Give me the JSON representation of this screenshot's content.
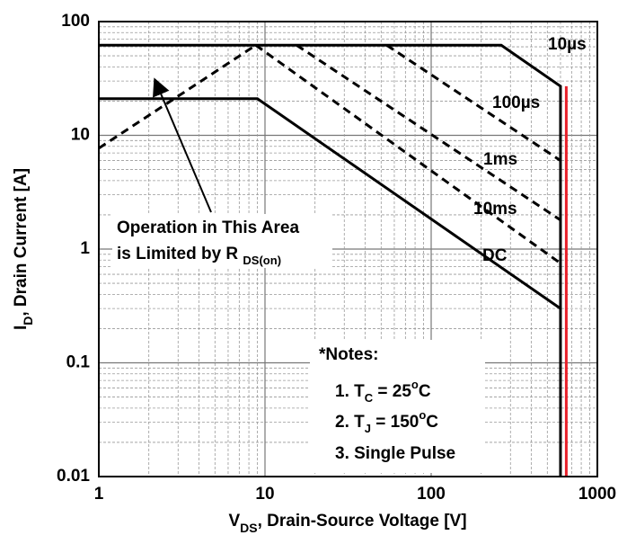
{
  "chart_data": {
    "type": "line",
    "log_x": true,
    "log_y": true,
    "grid": true,
    "minor_grid": true,
    "x_label": [
      {
        "text": "V"
      },
      {
        "text": "DS",
        "sub": true
      },
      {
        "text": ", Drain-Source Voltage [V]"
      }
    ],
    "y_label": [
      {
        "text": "I"
      },
      {
        "text": "D",
        "sub": true
      },
      {
        "text": ", Drain Current [A]"
      }
    ],
    "xlim": [
      1,
      1000
    ],
    "xticks": [
      1,
      10,
      100,
      1000
    ],
    "ylim": [
      0.01,
      100
    ],
    "yticks": [
      0.01,
      0.1,
      1,
      10,
      100
    ],
    "series": [
      {
        "name": "10µs",
        "color": "#000000",
        "dash": false,
        "x": [
          1,
          264,
          600,
          600
        ],
        "values": [
          62,
          62,
          27,
          0.01
        ]
      },
      {
        "name": "100µs",
        "color": "#000000",
        "dash": true,
        "x": [
          54,
          600
        ],
        "values": [
          62,
          6
        ]
      },
      {
        "name": "1ms",
        "color": "#000000",
        "dash": true,
        "x": [
          15.5,
          600
        ],
        "values": [
          62,
          1.8
        ]
      },
      {
        "name": "10ms",
        "color": "#000000",
        "dash": true,
        "x": [
          8.8,
          600
        ],
        "values": [
          62,
          0.75
        ]
      },
      {
        "name": "DC",
        "color": "#000000",
        "dash": false,
        "x": [
          1,
          9,
          600
        ],
        "values": [
          21,
          21,
          0.3
        ]
      },
      {
        "color": "#000000",
        "dash": true,
        "x": [
          1,
          8.8
        ],
        "values": [
          7.7,
          62
        ]
      },
      {
        "color": "#e8202a",
        "dash": false,
        "x": [
          650,
          650
        ],
        "values": [
          27,
          0.01
        ]
      }
    ],
    "annotation": [
      [
        {
          "text": "Operation in This Area"
        }
      ],
      [
        {
          "text": "is Limited by R "
        },
        {
          "text": "DS(on)",
          "sub": true
        }
      ]
    ],
    "notes": [
      [
        {
          "text": "*Notes:"
        }
      ],
      [
        {
          "text": "1. T"
        },
        {
          "text": "C",
          "sub": true
        },
        {
          "text": " = 25"
        },
        {
          "text": "o",
          "sup": true
        },
        {
          "text": "C"
        }
      ],
      [
        {
          "text": "2. T"
        },
        {
          "text": "J",
          "sub": true
        },
        {
          "text": " = 150"
        },
        {
          "text": "o",
          "sup": true
        },
        {
          "text": "C"
        }
      ],
      [
        {
          "text": "3. Single Pulse"
        }
      ]
    ]
  }
}
